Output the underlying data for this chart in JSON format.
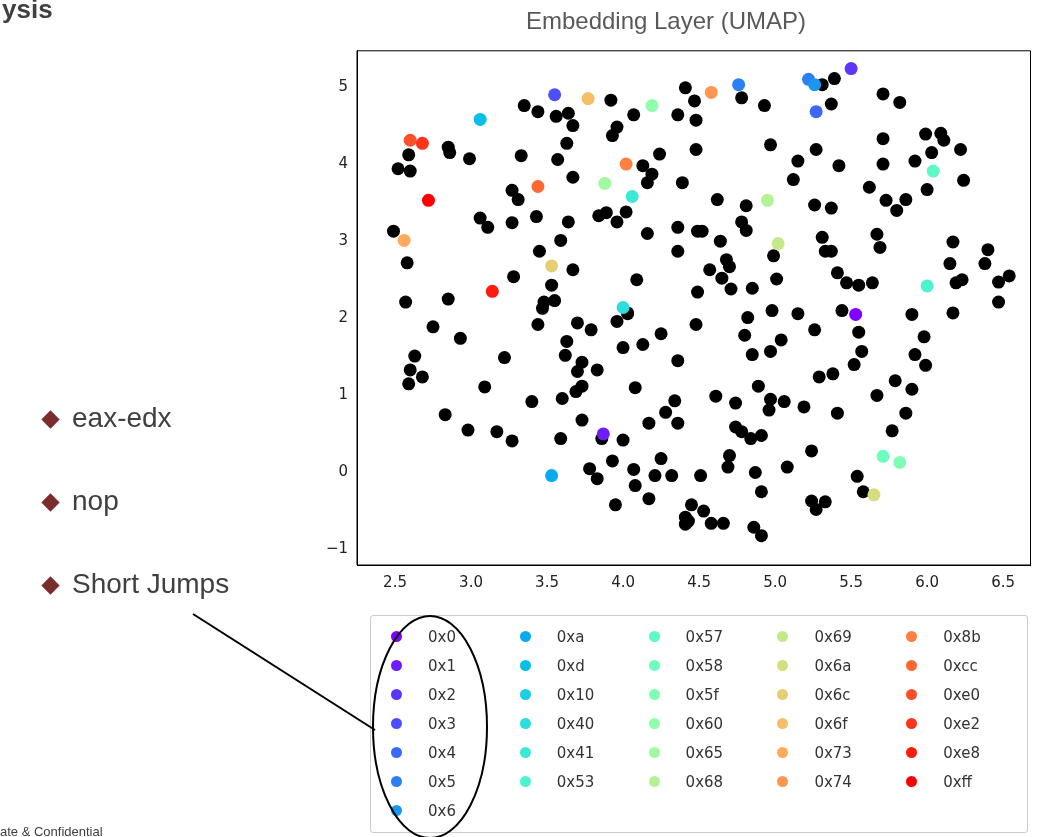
{
  "chart_data": {
    "type": "scatter",
    "title": "Embedding Layer (UMAP)",
    "xlim": [
      2.25,
      6.68
    ],
    "ylim": [
      -1.2,
      5.47
    ],
    "xticks": [
      {
        "value": 2.5,
        "label": "2.5"
      },
      {
        "value": 3,
        "label": "3.0"
      },
      {
        "value": 3.5,
        "label": "3.5"
      },
      {
        "value": 4,
        "label": "4.0"
      },
      {
        "value": 4.5,
        "label": "4.5"
      },
      {
        "value": 5,
        "label": "5.0"
      },
      {
        "value": 5.5,
        "label": "5.5"
      },
      {
        "value": 6,
        "label": "6.0"
      },
      {
        "value": 6.5,
        "label": "6.5"
      }
    ],
    "yticks": [
      {
        "value": -1,
        "label": "−1"
      },
      0,
      1,
      2,
      3,
      4,
      5
    ],
    "grid": false,
    "legend": "bottom",
    "marker": "circle",
    "annotations": [
      "ysis",
      "eax-edx",
      "nop",
      "Short Jumps",
      "ate & Confidential"
    ],
    "series": [
      {
        "color": "#000000",
        "x": [
          4.41,
          4.47,
          4.36,
          4.48,
          3.92,
          4.07,
          3.96,
          3.93,
          3.35,
          3.44,
          3.56,
          3.64,
          3.67,
          3.63,
          3.57,
          3.33,
          3.67,
          4.24,
          4.13,
          4.19,
          4.16,
          4.39,
          4.48,
          2.85,
          2.86,
          2.99,
          2.59,
          2.52,
          2.6,
          3.27,
          3.31,
          3.06,
          3.11,
          3.27,
          3.43,
          3.64,
          3.59,
          3.45,
          3.53,
          3.67,
          3.28,
          3.84,
          3.89,
          3.96,
          4.02,
          4.16,
          4.36,
          4.36,
          4.49,
          4.09,
          4.49,
          2.49,
          2.58,
          2.57,
          2.85,
          3.48,
          3.55,
          3.47,
          4.03,
          4.78,
          4.93,
          5.31,
          5.39,
          5.37,
          5.71,
          5.82,
          4.97,
          5.27,
          5.15,
          5.42,
          5.12,
          5.71,
          5.71,
          5.92,
          5.99,
          6.09,
          6.11,
          6.03,
          6.22,
          6.24,
          6.0,
          5.62,
          5.73,
          5.8,
          5.86,
          4.62,
          4.81,
          4.78,
          4.81,
          5.26,
          5.37,
          4.52,
          4.64,
          5.31,
          5.33,
          5.37,
          5.67,
          5.69,
          6.17,
          6.4,
          6.15,
          6.38,
          4.68,
          4.7,
          4.57,
          4.65,
          4.71,
          4.85,
          4.99,
          5.01,
          5.41,
          5.47,
          5.55,
          5.64,
          6.19,
          6.23,
          6.47,
          6.54,
          6.47,
          4.48,
          4.82,
          4.98,
          5.15,
          5.44,
          5.9,
          6.17,
          4.8,
          5.04,
          5.26,
          5.55,
          5.98,
          4.85,
          4.97,
          5.57,
          5.92,
          5.99,
          5.52,
          5.29,
          5.38,
          5.79,
          5.9,
          5.67,
          5.86,
          5.77,
          4.89,
          4.97,
          4.96,
          5.06,
          5.19,
          5.41,
          4.61,
          4.74,
          4.74,
          4.78,
          4.84,
          4.91,
          4.7,
          4.69,
          4.51,
          4.87,
          5.08,
          5.24,
          4.91,
          5.54,
          5.58,
          4.45,
          4.53,
          4.43,
          4.58,
          4.66,
          4.86,
          4.91,
          5.24,
          5.33,
          5.27,
          2.75,
          2.93,
          3.44,
          3.7,
          3.79,
          3.96,
          4.03,
          3.63,
          3.62,
          3.73,
          3.7,
          3.83,
          3.73,
          3.69,
          3.6,
          3.4,
          4.0,
          4.13,
          4.25,
          4.36,
          4.08,
          2.63,
          2.6,
          2.68,
          2.59,
          3.22,
          3.09,
          2.83,
          2.98,
          3.17,
          3.27,
          3.59,
          3.73,
          3.86,
          4.0,
          4.34,
          4.28,
          4.36,
          4.17,
          4.25,
          3.93,
          3.78,
          3.83,
          4.07,
          4.08,
          4.21,
          4.32,
          4.17,
          3.95,
          4.41,
          4.41
        ],
        "values": [
          4.99,
          4.82,
          4.64,
          4.57,
          4.83,
          4.64,
          4.48,
          4.37,
          4.76,
          4.68,
          4.62,
          4.66,
          4.5,
          4.27,
          4.06,
          4.11,
          3.83,
          4.13,
          3.98,
          3.87,
          3.76,
          3.76,
          4.19,
          4.22,
          4.15,
          4.07,
          4.12,
          3.94,
          3.91,
          3.66,
          3.54,
          3.3,
          3.18,
          3.24,
          3.32,
          3.25,
          3.01,
          2.87,
          2.43,
          2.63,
          2.54,
          3.33,
          3.37,
          3.25,
          3.38,
          3.1,
          3.18,
          2.87,
          3.13,
          2.5,
          2.34,
          3.13,
          2.72,
          2.21,
          2.25,
          2.21,
          2.23,
          2.13,
          2.07,
          4.86,
          4.76,
          5.03,
          5.11,
          4.78,
          4.91,
          4.8,
          4.25,
          4.19,
          4.04,
          3.98,
          3.8,
          4.33,
          4.0,
          4.04,
          4.39,
          4.4,
          4.31,
          4.15,
          4.19,
          3.79,
          3.67,
          3.7,
          3.53,
          3.4,
          3.54,
          3.54,
          3.46,
          3.25,
          3.14,
          3.47,
          3.43,
          3.13,
          3.0,
          3.05,
          2.87,
          2.87,
          3.09,
          2.92,
          2.99,
          2.89,
          2.71,
          2.71,
          2.76,
          2.67,
          2.63,
          2.52,
          2.38,
          2.39,
          2.81,
          2.51,
          2.59,
          2.46,
          2.43,
          2.46,
          2.46,
          2.5,
          2.47,
          2.55,
          2.21,
          1.92,
          2.01,
          2.1,
          2.06,
          2.1,
          2.05,
          2.07,
          1.78,
          1.72,
          1.85,
          1.82,
          1.76,
          1.53,
          1.57,
          1.57,
          1.53,
          1.39,
          1.4,
          1.24,
          1.28,
          1.19,
          1.08,
          1.0,
          0.77,
          0.54,
          1.12,
          0.95,
          0.81,
          0.92,
          0.85,
          0.77,
          0.99,
          0.9,
          0.59,
          0.53,
          0.44,
          0.48,
          0.22,
          0.07,
          -0.04,
          0.0,
          0.07,
          0.28,
          -0.25,
          -0.05,
          -0.25,
          -0.42,
          -0.5,
          -0.63,
          -0.66,
          -0.66,
          -0.71,
          -0.82,
          -0.37,
          -0.38,
          -0.48,
          1.89,
          1.74,
          1.92,
          1.94,
          1.85,
          1.96,
          2.06,
          1.7,
          1.52,
          1.43,
          1.31,
          1.33,
          1.12,
          1.05,
          0.96,
          0.92,
          1.62,
          1.66,
          1.8,
          1.45,
          1.1,
          1.51,
          1.33,
          1.24,
          1.15,
          1.49,
          1.11,
          0.75,
          0.55,
          0.53,
          0.41,
          0.44,
          0.68,
          0.44,
          0.42,
          0.93,
          0.78,
          0.64,
          0.64,
          0.18,
          0.15,
          0.05,
          -0.08,
          0.04,
          -0.17,
          -0.04,
          -0.04,
          -0.34,
          -0.42,
          -0.58,
          -0.67
        ]
      },
      {
        "name": "0x0",
        "color": "#8000ff",
        "x": [
          5.53
        ],
        "values": [
          2.05
        ]
      },
      {
        "name": "0x1",
        "color": "#6e1bff",
        "x": [
          3.87
        ],
        "values": [
          0.5
        ]
      },
      {
        "name": "0x2",
        "color": "#5e35fe",
        "x": [
          5.5
        ],
        "values": [
          5.24
        ]
      },
      {
        "name": "0x3",
        "color": "#4d4ffc",
        "x": [
          3.55
        ],
        "values": [
          4.9
        ]
      },
      {
        "name": "0x4",
        "color": "#3c68f9",
        "x": [
          5.27
        ],
        "values": [
          4.68
        ]
      },
      {
        "name": "0x5",
        "color": "#2b80f6",
        "x": [
          4.76,
          5.22
        ],
        "values": [
          5.03,
          5.1
        ]
      },
      {
        "name": "0x6",
        "color": "#1a96f3",
        "x": [
          5.26
        ],
        "values": [
          5.03
        ]
      },
      {
        "name": "0xa",
        "color": "#09abee",
        "x": [
          3.53
        ],
        "values": [
          -0.04
        ]
      },
      {
        "name": "0xd",
        "color": "#09bee9",
        "x": [
          3.06
        ],
        "values": [
          4.58
        ]
      },
      {
        "name": "0x10",
        "color": "#1acee3"
      },
      {
        "name": "0x40",
        "color": "#2bdddd",
        "x": [
          4.0
        ],
        "values": [
          2.14
        ]
      },
      {
        "name": "0x41",
        "color": "#3ce9d6",
        "x": [
          4.06
        ],
        "values": [
          3.58
        ]
      },
      {
        "name": "0x53",
        "color": "#4df3ce",
        "x": [
          6.0
        ],
        "values": [
          2.42
        ]
      },
      {
        "name": "0x57",
        "color": "#5ef9c6",
        "x": [
          6.04
        ],
        "values": [
          3.91
        ]
      },
      {
        "name": "0x58",
        "color": "#6efebe",
        "x": [
          5.71
        ],
        "values": [
          0.21
        ]
      },
      {
        "name": "0x5f",
        "color": "#80ffb4",
        "x": [
          5.82
        ],
        "values": [
          0.13
        ]
      },
      {
        "name": "0x60",
        "color": "#91feab",
        "x": [
          4.19
        ],
        "values": [
          4.76
        ]
      },
      {
        "name": "0x65",
        "color": "#a1f9a0",
        "x": [
          3.88
        ],
        "values": [
          3.75
        ]
      },
      {
        "name": "0x68",
        "color": "#b3f396",
        "x": [
          4.95
        ],
        "values": [
          3.53
        ]
      },
      {
        "name": "0x69",
        "color": "#c4e98b",
        "x": [
          5.02
        ],
        "values": [
          2.97
        ]
      },
      {
        "name": "0x6a",
        "color": "#d4dd80",
        "x": [
          5.65
        ],
        "values": [
          -0.29
        ]
      },
      {
        "name": "0x6c",
        "color": "#e6ce74",
        "x": [
          3.53
        ],
        "values": [
          2.68
        ]
      },
      {
        "name": "0x6f",
        "color": "#f7be68",
        "x": [
          3.77
        ],
        "values": [
          4.85
        ]
      },
      {
        "name": "0x73",
        "color": "#ffab5b",
        "x": [
          2.56
        ],
        "values": [
          3.01
        ]
      },
      {
        "name": "0x74",
        "color": "#ff964f",
        "x": [
          4.58
        ],
        "values": [
          4.93
        ]
      },
      {
        "name": "0x8b",
        "color": "#ff8042",
        "x": [
          4.02
        ],
        "values": [
          4.0
        ]
      },
      {
        "name": "0xcc",
        "color": "#ff6835",
        "x": [
          3.44
        ],
        "values": [
          3.71
        ]
      },
      {
        "name": "0xe0",
        "color": "#ff4f28",
        "x": [
          2.6
        ],
        "values": [
          4.31
        ]
      },
      {
        "name": "0xe2",
        "color": "#ff351b",
        "x": [
          2.68
        ],
        "values": [
          4.27
        ]
      },
      {
        "name": "0xe8",
        "color": "#ff1b0d",
        "x": [
          3.14
        ],
        "values": [
          2.35
        ]
      },
      {
        "name": "0xff",
        "color": "#ff0000",
        "x": [
          2.72
        ],
        "values": [
          3.53
        ]
      }
    ]
  }
}
